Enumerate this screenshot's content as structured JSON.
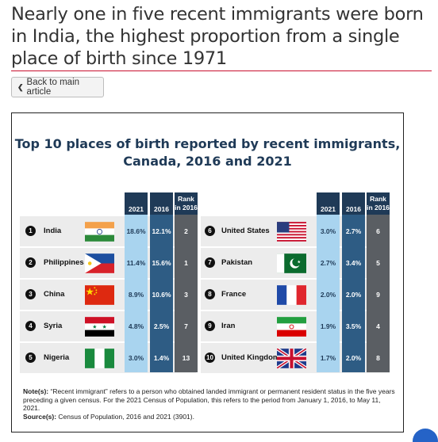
{
  "headline": "Nearly one in five recent immigrants were born in India, the highest proportion from a single place of birth since 1971",
  "back_button": "Back to main article",
  "chart_title": "Top 10 places of birth reported by recent immigrants, Canada, 2016 and 2021",
  "headers": {
    "y2021": "2021",
    "y2016": "2016",
    "rank_line1": "Rank",
    "rank_line2": "in 2016"
  },
  "left_rows": [
    {
      "num": "1",
      "country": "India",
      "flag": "india-flag-icon",
      "v2021": "18.6%",
      "v2016": "12.1%",
      "rank": "2"
    },
    {
      "num": "2",
      "country": "Philippines",
      "flag": "philippines-flag-icon",
      "v2021": "11.4%",
      "v2016": "15.6%",
      "rank": "1"
    },
    {
      "num": "3",
      "country": "China",
      "flag": "china-flag-icon",
      "v2021": "8.9%",
      "v2016": "10.6%",
      "rank": "3"
    },
    {
      "num": "4",
      "country": "Syria",
      "flag": "syria-flag-icon",
      "v2021": "4.8%",
      "v2016": "2.5%",
      "rank": "7"
    },
    {
      "num": "5",
      "country": "Nigeria",
      "flag": "nigeria-flag-icon",
      "v2021": "3.0%",
      "v2016": "1.4%",
      "rank": "13"
    }
  ],
  "right_rows": [
    {
      "num": "6",
      "country": "United States",
      "flag": "usa-flag-icon",
      "v2021": "3.0%",
      "v2016": "2.7%",
      "rank": "6"
    },
    {
      "num": "7",
      "country": "Pakistan",
      "flag": "pakistan-flag-icon",
      "v2021": "2.7%",
      "v2016": "3.4%",
      "rank": "5"
    },
    {
      "num": "8",
      "country": "France",
      "flag": "france-flag-icon",
      "v2021": "2.0%",
      "v2016": "2.0%",
      "rank": "9"
    },
    {
      "num": "9",
      "country": "Iran",
      "flag": "iran-flag-icon",
      "v2021": "1.9%",
      "v2016": "3.5%",
      "rank": "4"
    },
    {
      "num": "10",
      "country": "United Kingdom",
      "flag": "uk-flag-icon",
      "v2021": "1.7%",
      "v2016": "2.0%",
      "rank": "8"
    }
  ],
  "notes_label": "Note(s):",
  "notes_text": "“Recent immigrant” refers to a person who obtained landed immigrant or permanent resident status in the five years preceding a given census. For the 2021 Census of Population, this refers to the period from January 1, 2016, to May 11, 2021.",
  "source_label": "Source(s):",
  "source_text": "Census of Population, 2016 and 2021 (3901).",
  "colors": {
    "title_navy": "#1f3a57",
    "col_2021": "#a9d4ef",
    "col_2016": "#2e5c84",
    "col_rank": "#5a5e63",
    "rule_red": "#c8102e"
  }
}
